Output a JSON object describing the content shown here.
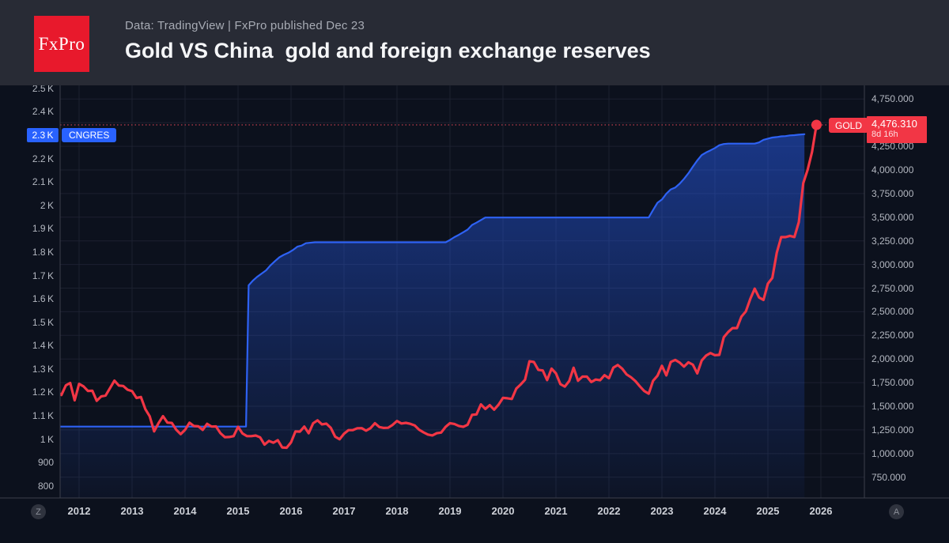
{
  "header": {
    "logo_text": "FxPro",
    "source_line": "Data: TradingView | FxPro published Dec 23",
    "title": "Gold VS China  gold and foreign exchange reserves"
  },
  "colors": {
    "header_bg": "#282b35",
    "chart_bg": "#0c111d",
    "grid": "#1c2130",
    "axis_border": "#3c404c",
    "blue": "#2e62f4",
    "blue_label_bg": "#2962ff",
    "red": "#f23645",
    "dotted_line": "#a03644",
    "axis_text": "#b4b8c1"
  },
  "labels": {
    "cngres_axis_value": "2.3 K",
    "cngres_series": "CNGRES",
    "gold_series": "GOLD",
    "gold_price": "4,476.310",
    "gold_countdown": "8d 16h"
  },
  "buttons": {
    "left_scale_reset": "Z",
    "right_scale_reset": "A"
  },
  "chart_data": {
    "type": "line",
    "title": "Gold VS China gold and foreign exchange reserves",
    "x_axis": {
      "ticks": [
        2012,
        2013,
        2014,
        2015,
        2016,
        2017,
        2018,
        2019,
        2020,
        2021,
        2022,
        2023,
        2024,
        2025,
        2026
      ],
      "range": [
        2011.55,
        2026.4
      ]
    },
    "left_axis": {
      "unit": "tonnes",
      "range": [
        800,
        2500
      ],
      "ticks": [
        {
          "v": 2500,
          "label": "2.5 K"
        },
        {
          "v": 2400,
          "label": "2.4 K"
        },
        {
          "v": 2200,
          "label": "2.2 K"
        },
        {
          "v": 2100,
          "label": "2.1 K"
        },
        {
          "v": 2000,
          "label": "2 K"
        },
        {
          "v": 1900,
          "label": "1.9 K"
        },
        {
          "v": 1800,
          "label": "1.8 K"
        },
        {
          "v": 1700,
          "label": "1.7 K"
        },
        {
          "v": 1600,
          "label": "1.6 K"
        },
        {
          "v": 1500,
          "label": "1.5 K"
        },
        {
          "v": 1400,
          "label": "1.4 K"
        },
        {
          "v": 1300,
          "label": "1.3 K"
        },
        {
          "v": 1200,
          "label": "1.2 K"
        },
        {
          "v": 1100,
          "label": "1.1 K"
        },
        {
          "v": 1000,
          "label": "1 K"
        },
        {
          "v": 900,
          "label": "900"
        },
        {
          "v": 800,
          "label": "800"
        }
      ]
    },
    "right_axis": {
      "unit": "USD",
      "range": [
        750,
        4750
      ],
      "grid_values": [
        750,
        1000,
        1250,
        1500,
        1750,
        2000,
        2250,
        2500,
        2750,
        3000,
        3250,
        3500,
        3750,
        4000,
        4250,
        4500,
        4750
      ],
      "ticks": [
        {
          "v": 4750,
          "label": "4,750.000"
        },
        {
          "v": 4250,
          "label": "4,250.000"
        },
        {
          "v": 4000,
          "label": "4,000.000"
        },
        {
          "v": 3750,
          "label": "3,750.000"
        },
        {
          "v": 3500,
          "label": "3,500.000"
        },
        {
          "v": 3250,
          "label": "3,250.000"
        },
        {
          "v": 3000,
          "label": "3,000.000"
        },
        {
          "v": 2750,
          "label": "2,750.000"
        },
        {
          "v": 2500,
          "label": "2,500.000"
        },
        {
          "v": 2250,
          "label": "2,250.000"
        },
        {
          "v": 2000,
          "label": "2,000.000"
        },
        {
          "v": 1750,
          "label": "1,750.000"
        },
        {
          "v": 1500,
          "label": "1,500.000"
        },
        {
          "v": 1250,
          "label": "1,250.000"
        },
        {
          "v": 1000,
          "label": "1,000.000"
        },
        {
          "v": 750,
          "label": "750.000"
        }
      ]
    },
    "series": [
      {
        "name": "CNGRES",
        "style": "area",
        "axis": "left",
        "color": "#2e62f4",
        "last_value": 2304,
        "points": [
          [
            2011.55,
            1054
          ],
          [
            2015.15,
            1054
          ],
          [
            2015.2,
            1658
          ],
          [
            2015.28,
            1678
          ],
          [
            2015.36,
            1694
          ],
          [
            2015.45,
            1709
          ],
          [
            2015.53,
            1722
          ],
          [
            2015.61,
            1743
          ],
          [
            2015.7,
            1762
          ],
          [
            2015.78,
            1778
          ],
          [
            2015.86,
            1788
          ],
          [
            2015.95,
            1797
          ],
          [
            2016.03,
            1808
          ],
          [
            2016.12,
            1823
          ],
          [
            2016.2,
            1828
          ],
          [
            2016.28,
            1838
          ],
          [
            2016.45,
            1842
          ],
          [
            2018.92,
            1842
          ],
          [
            2019.0,
            1852
          ],
          [
            2019.083,
            1864
          ],
          [
            2019.167,
            1874
          ],
          [
            2019.25,
            1885
          ],
          [
            2019.333,
            1896
          ],
          [
            2019.417,
            1916
          ],
          [
            2019.5,
            1926
          ],
          [
            2019.583,
            1937
          ],
          [
            2019.667,
            1948
          ],
          [
            2022.75,
            1948
          ],
          [
            2022.833,
            1980
          ],
          [
            2022.917,
            2011
          ],
          [
            2023.0,
            2025
          ],
          [
            2023.083,
            2050
          ],
          [
            2023.167,
            2068
          ],
          [
            2023.25,
            2076
          ],
          [
            2023.333,
            2092
          ],
          [
            2023.417,
            2113
          ],
          [
            2023.5,
            2137
          ],
          [
            2023.583,
            2165
          ],
          [
            2023.667,
            2192
          ],
          [
            2023.75,
            2215
          ],
          [
            2023.833,
            2226
          ],
          [
            2023.917,
            2235
          ],
          [
            2024.0,
            2245
          ],
          [
            2024.083,
            2257
          ],
          [
            2024.167,
            2262
          ],
          [
            2024.25,
            2264
          ],
          [
            2024.75,
            2264
          ],
          [
            2024.833,
            2269
          ],
          [
            2024.917,
            2280
          ],
          [
            2025.0,
            2285
          ],
          [
            2025.083,
            2290
          ],
          [
            2025.167,
            2292
          ],
          [
            2025.25,
            2295
          ],
          [
            2025.333,
            2296
          ],
          [
            2025.417,
            2299
          ],
          [
            2025.5,
            2300
          ],
          [
            2025.583,
            2302
          ],
          [
            2025.69,
            2304
          ]
        ]
      },
      {
        "name": "GOLD",
        "style": "line",
        "axis": "right",
        "color": "#f23645",
        "last_value": 4476.31,
        "points": [
          [
            2011.583,
            1657
          ],
          [
            2011.667,
            1620
          ],
          [
            2011.75,
            1722
          ],
          [
            2011.833,
            1746
          ],
          [
            2011.917,
            1563
          ],
          [
            2012.0,
            1737
          ],
          [
            2012.083,
            1711
          ],
          [
            2012.167,
            1662
          ],
          [
            2012.25,
            1664
          ],
          [
            2012.333,
            1558
          ],
          [
            2012.417,
            1604
          ],
          [
            2012.5,
            1614
          ],
          [
            2012.583,
            1692
          ],
          [
            2012.667,
            1771
          ],
          [
            2012.75,
            1719
          ],
          [
            2012.833,
            1715
          ],
          [
            2012.917,
            1675
          ],
          [
            2013.0,
            1660
          ],
          [
            2013.083,
            1588
          ],
          [
            2013.167,
            1598
          ],
          [
            2013.25,
            1469
          ],
          [
            2013.333,
            1394
          ],
          [
            2013.417,
            1234
          ],
          [
            2013.5,
            1323
          ],
          [
            2013.583,
            1396
          ],
          [
            2013.667,
            1327
          ],
          [
            2013.75,
            1324
          ],
          [
            2013.833,
            1253
          ],
          [
            2013.917,
            1205
          ],
          [
            2014.0,
            1251
          ],
          [
            2014.083,
            1326
          ],
          [
            2014.167,
            1291
          ],
          [
            2014.25,
            1288
          ],
          [
            2014.333,
            1250
          ],
          [
            2014.417,
            1315
          ],
          [
            2014.5,
            1285
          ],
          [
            2014.583,
            1287
          ],
          [
            2014.667,
            1216
          ],
          [
            2014.75,
            1173
          ],
          [
            2014.833,
            1175
          ],
          [
            2014.917,
            1184
          ],
          [
            2015.0,
            1283
          ],
          [
            2015.083,
            1213
          ],
          [
            2015.167,
            1184
          ],
          [
            2015.25,
            1184
          ],
          [
            2015.333,
            1191
          ],
          [
            2015.417,
            1172
          ],
          [
            2015.5,
            1095
          ],
          [
            2015.583,
            1134
          ],
          [
            2015.667,
            1115
          ],
          [
            2015.75,
            1142
          ],
          [
            2015.833,
            1065
          ],
          [
            2015.917,
            1061
          ],
          [
            2016.0,
            1118
          ],
          [
            2016.083,
            1234
          ],
          [
            2016.167,
            1232
          ],
          [
            2016.25,
            1285
          ],
          [
            2016.333,
            1215
          ],
          [
            2016.417,
            1320
          ],
          [
            2016.5,
            1351
          ],
          [
            2016.583,
            1309
          ],
          [
            2016.667,
            1316
          ],
          [
            2016.75,
            1272
          ],
          [
            2016.833,
            1178
          ],
          [
            2016.917,
            1152
          ],
          [
            2017.0,
            1210
          ],
          [
            2017.083,
            1248
          ],
          [
            2017.167,
            1249
          ],
          [
            2017.25,
            1268
          ],
          [
            2017.333,
            1269
          ],
          [
            2017.417,
            1242
          ],
          [
            2017.5,
            1269
          ],
          [
            2017.583,
            1321
          ],
          [
            2017.667,
            1280
          ],
          [
            2017.75,
            1271
          ],
          [
            2017.833,
            1273
          ],
          [
            2017.917,
            1303
          ],
          [
            2018.0,
            1345
          ],
          [
            2018.083,
            1318
          ],
          [
            2018.167,
            1325
          ],
          [
            2018.25,
            1315
          ],
          [
            2018.333,
            1298
          ],
          [
            2018.417,
            1253
          ],
          [
            2018.5,
            1224
          ],
          [
            2018.583,
            1201
          ],
          [
            2018.667,
            1192
          ],
          [
            2018.75,
            1215
          ],
          [
            2018.833,
            1222
          ],
          [
            2018.917,
            1282
          ],
          [
            2019.0,
            1321
          ],
          [
            2019.083,
            1313
          ],
          [
            2019.167,
            1292
          ],
          [
            2019.25,
            1283
          ],
          [
            2019.333,
            1305
          ],
          [
            2019.417,
            1409
          ],
          [
            2019.5,
            1414
          ],
          [
            2019.583,
            1520
          ],
          [
            2019.667,
            1472
          ],
          [
            2019.75,
            1512
          ],
          [
            2019.833,
            1464
          ],
          [
            2019.917,
            1517
          ],
          [
            2020.0,
            1589
          ],
          [
            2020.083,
            1585
          ],
          [
            2020.167,
            1577
          ],
          [
            2020.25,
            1687
          ],
          [
            2020.333,
            1730
          ],
          [
            2020.417,
            1781
          ],
          [
            2020.5,
            1976
          ],
          [
            2020.583,
            1968
          ],
          [
            2020.667,
            1886
          ],
          [
            2020.75,
            1879
          ],
          [
            2020.833,
            1777
          ],
          [
            2020.917,
            1898
          ],
          [
            2021.0,
            1848
          ],
          [
            2021.083,
            1734
          ],
          [
            2021.167,
            1708
          ],
          [
            2021.25,
            1768
          ],
          [
            2021.333,
            1907
          ],
          [
            2021.417,
            1770
          ],
          [
            2021.5,
            1814
          ],
          [
            2021.583,
            1814
          ],
          [
            2021.667,
            1757
          ],
          [
            2021.75,
            1783
          ],
          [
            2021.833,
            1775
          ],
          [
            2021.917,
            1829
          ],
          [
            2022.0,
            1797
          ],
          [
            2022.083,
            1909
          ],
          [
            2022.167,
            1937
          ],
          [
            2022.25,
            1897
          ],
          [
            2022.333,
            1837
          ],
          [
            2022.417,
            1807
          ],
          [
            2022.5,
            1766
          ],
          [
            2022.583,
            1711
          ],
          [
            2022.667,
            1661
          ],
          [
            2022.75,
            1633
          ],
          [
            2022.833,
            1769
          ],
          [
            2022.917,
            1824
          ],
          [
            2023.0,
            1928
          ],
          [
            2023.083,
            1827
          ],
          [
            2023.167,
            1969
          ],
          [
            2023.25,
            1990
          ],
          [
            2023.333,
            1963
          ],
          [
            2023.417,
            1919
          ],
          [
            2023.5,
            1965
          ],
          [
            2023.583,
            1940
          ],
          [
            2023.667,
            1848
          ],
          [
            2023.75,
            1984
          ],
          [
            2023.833,
            2036
          ],
          [
            2023.917,
            2063
          ],
          [
            2024.0,
            2040
          ],
          [
            2024.083,
            2044
          ],
          [
            2024.167,
            2230
          ],
          [
            2024.25,
            2286
          ],
          [
            2024.333,
            2327
          ],
          [
            2024.417,
            2327
          ],
          [
            2024.5,
            2448
          ],
          [
            2024.583,
            2503
          ],
          [
            2024.667,
            2635
          ],
          [
            2024.75,
            2744
          ],
          [
            2024.833,
            2651
          ],
          [
            2024.917,
            2625
          ],
          [
            2025.0,
            2798
          ],
          [
            2025.083,
            2858
          ],
          [
            2025.167,
            3124
          ],
          [
            2025.25,
            3289
          ],
          [
            2025.333,
            3289
          ],
          [
            2025.417,
            3303
          ],
          [
            2025.5,
            3290
          ],
          [
            2025.583,
            3448
          ],
          [
            2025.667,
            3859
          ],
          [
            2025.75,
            4003
          ],
          [
            2025.833,
            4190
          ],
          [
            2025.917,
            4476.31
          ]
        ]
      }
    ],
    "annotations": {
      "last_price_line": {
        "series": "GOLD",
        "value": 4476.31,
        "style": "dotted"
      },
      "legend_position": "price-scale-right"
    },
    "grid": true
  }
}
